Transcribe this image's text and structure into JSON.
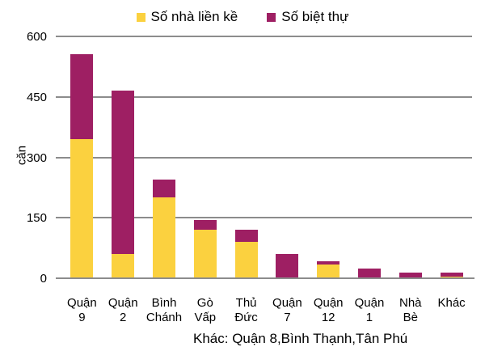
{
  "chart_data": {
    "type": "bar",
    "stacked": true,
    "title": "",
    "xlabel": "",
    "ylabel": "căn",
    "ylim": [
      0,
      600
    ],
    "yticks": [
      0,
      150,
      300,
      450,
      600
    ],
    "grid": true,
    "legend_position": "top",
    "categories": [
      "Quận 9",
      "Quận 2",
      "Bình Chánh",
      "Gò Vấp",
      "Thủ Đức",
      "Quận 7",
      "Quận 12",
      "Quận 1",
      "Nhà Bè",
      "Khác"
    ],
    "series": [
      {
        "name": "Số nhà liền kề",
        "color": "#FBD13F",
        "values": [
          345,
          60,
          200,
          120,
          90,
          0,
          35,
          0,
          0,
          5
        ]
      },
      {
        "name": "Số biệt thự",
        "color": "#9E1F63",
        "values": [
          210,
          405,
          45,
          25,
          30,
          60,
          7,
          25,
          15,
          10
        ]
      }
    ],
    "note": "Khác: Quận 8,Bình Thạnh,Tân Phú",
    "colors": {
      "grid": "#8C8C8C",
      "axis": "#8C8C8C",
      "text": "#000000",
      "background": "#FFFFFF"
    }
  }
}
